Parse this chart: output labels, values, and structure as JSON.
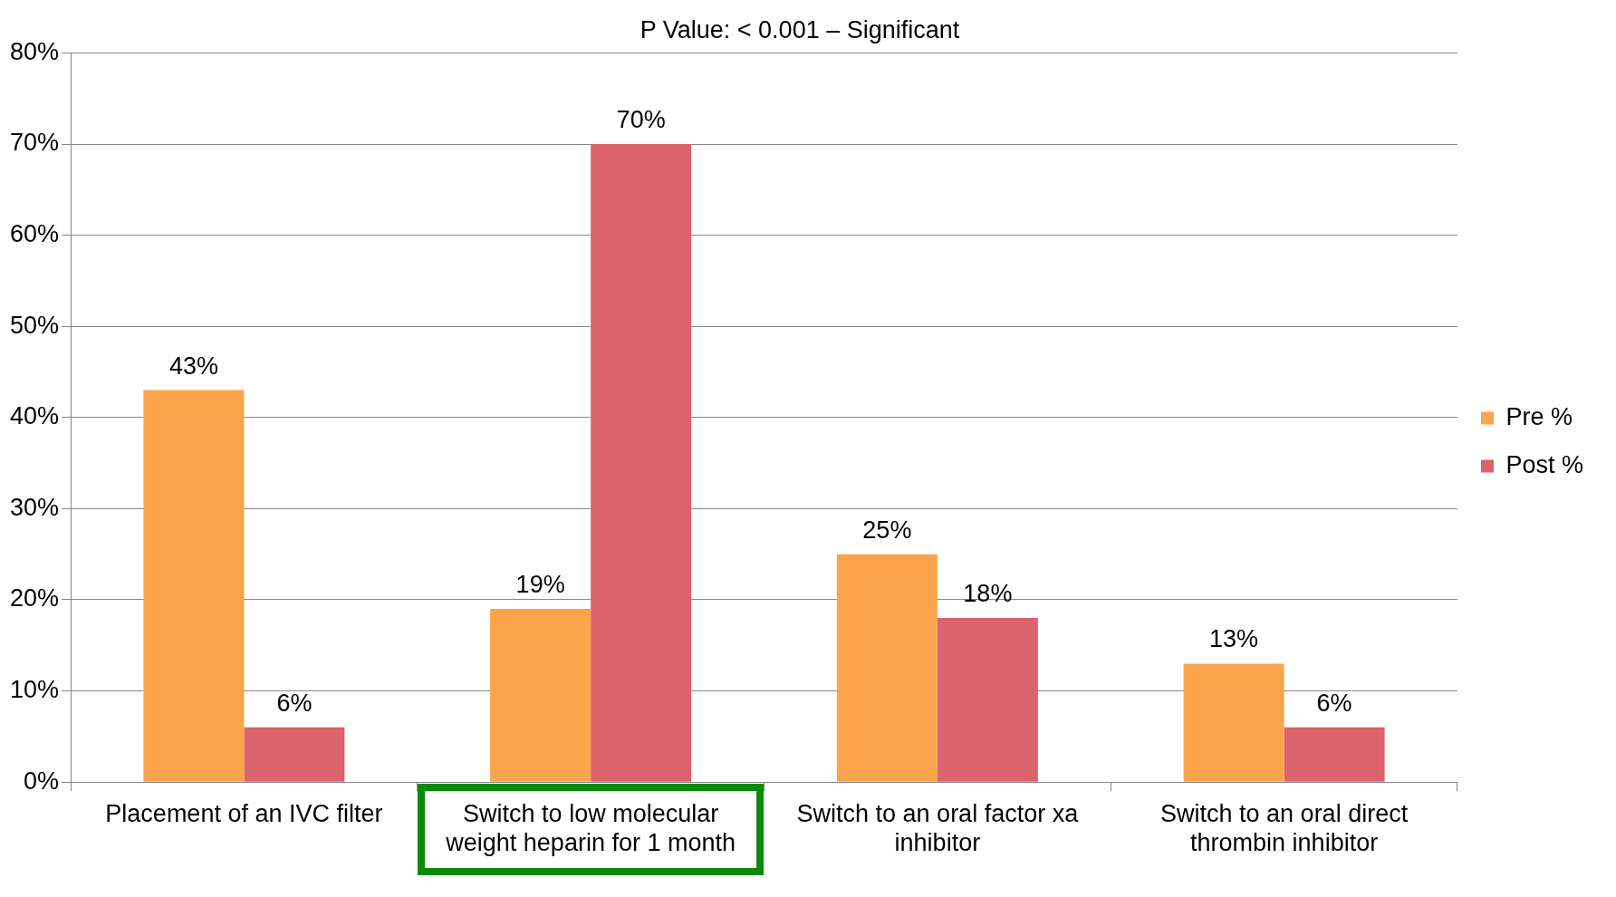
{
  "chart_data": {
    "type": "bar",
    "title": "P Value: < 0.001 – Significant",
    "categories": [
      "Placement of an IVC filter",
      "Switch to low molecular weight heparin for 1 month",
      "Switch to an oral factor xa inhibitor",
      "Switch to an oral direct thrombin inhibitor"
    ],
    "series": [
      {
        "name": "Pre %",
        "color": "#fba44c",
        "values": [
          43,
          19,
          25,
          13
        ]
      },
      {
        "name": "Post %",
        "color": "#dc626c",
        "values": [
          6,
          70,
          18,
          6
        ]
      }
    ],
    "ylim": [
      0,
      80
    ],
    "yticks": [
      {
        "value": 0,
        "label": "0%"
      },
      {
        "value": 10,
        "label": "10%"
      },
      {
        "value": 20,
        "label": "20%"
      },
      {
        "value": 30,
        "label": "30%"
      },
      {
        "value": 40,
        "label": "40%"
      },
      {
        "value": 50,
        "label": "50%"
      },
      {
        "value": 60,
        "label": "60%"
      },
      {
        "value": 70,
        "label": "70%"
      },
      {
        "value": 80,
        "label": "80%"
      }
    ],
    "value_labels": [
      [
        "43%",
        "19%",
        "25%",
        "13%"
      ],
      [
        "6%",
        "70%",
        "18%",
        "6%"
      ]
    ],
    "grid": "y",
    "legend": "right"
  }
}
